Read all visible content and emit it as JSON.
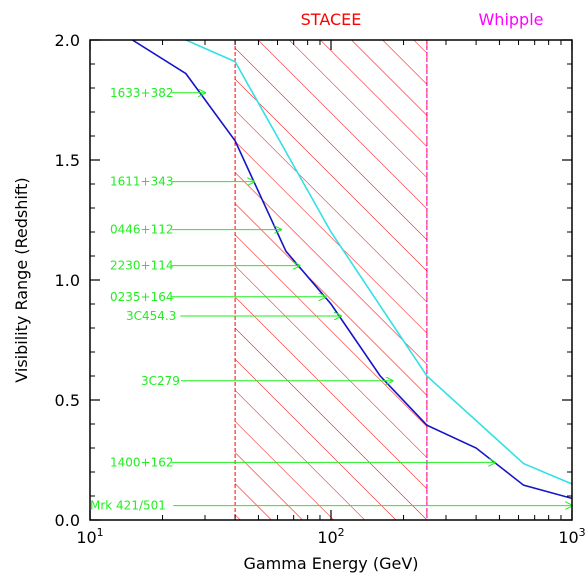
{
  "chart_data": {
    "type": "line",
    "xlabel": "Gamma Energy (GeV)",
    "ylabel": "Visibility Range (Redshift)",
    "xscale": "log",
    "xlim": [
      10,
      1000
    ],
    "ylim": [
      0,
      2.0
    ],
    "x_ticks": [
      {
        "value": 10,
        "base": "10",
        "exp": "1"
      },
      {
        "value": 100,
        "base": "10",
        "exp": "2"
      },
      {
        "value": 1000,
        "base": "10",
        "exp": "3"
      }
    ],
    "y_ticks": [
      {
        "value": 0.0,
        "label": "0.0"
      },
      {
        "value": 0.5,
        "label": "0.5"
      },
      {
        "value": 1.0,
        "label": "1.0"
      },
      {
        "value": 1.5,
        "label": "1.5"
      },
      {
        "value": 2.0,
        "label": "2.0"
      }
    ],
    "grid": false,
    "series": [
      {
        "color": "#1414c8",
        "x": [
          15,
          25,
          40,
          65,
          100,
          160,
          250,
          400,
          630,
          1000
        ],
        "y": [
          2.0,
          1.86,
          1.58,
          1.12,
          0.9,
          0.6,
          0.395,
          0.3,
          0.145,
          0.09
        ]
      },
      {
        "color": "#33e0e6",
        "x": [
          25,
          40,
          100,
          250,
          630,
          1000
        ],
        "y": [
          2.0,
          1.91,
          1.2,
          0.6,
          0.235,
          0.15
        ]
      }
    ],
    "band": {
      "x_range": [
        40,
        250
      ],
      "label": "STACEE",
      "color": "#ff0000",
      "hatch": "diagonal"
    },
    "threshold": {
      "x": 250,
      "label": "Whipple",
      "color": "#ff00ff"
    },
    "sources": [
      {
        "label": "1633+382",
        "redshift": 1.78,
        "energy": 30
      },
      {
        "label": "1611+343",
        "redshift": 1.41,
        "energy": 48
      },
      {
        "label": "0446+112",
        "redshift": 1.21,
        "energy": 62
      },
      {
        "label": "2230+114",
        "redshift": 1.06,
        "energy": 74
      },
      {
        "label": "0235+164",
        "redshift": 0.93,
        "energy": 95
      },
      {
        "label": "3C454.3",
        "redshift": 0.85,
        "energy": 110
      },
      {
        "label": "3C279",
        "redshift": 0.58,
        "energy": 180
      },
      {
        "label": "1400+162",
        "redshift": 0.24,
        "energy": 480
      },
      {
        "label": "Mrk 421/501",
        "redshift": 0.06,
        "energy": 1000
      }
    ],
    "source_color": "#22ee22"
  }
}
